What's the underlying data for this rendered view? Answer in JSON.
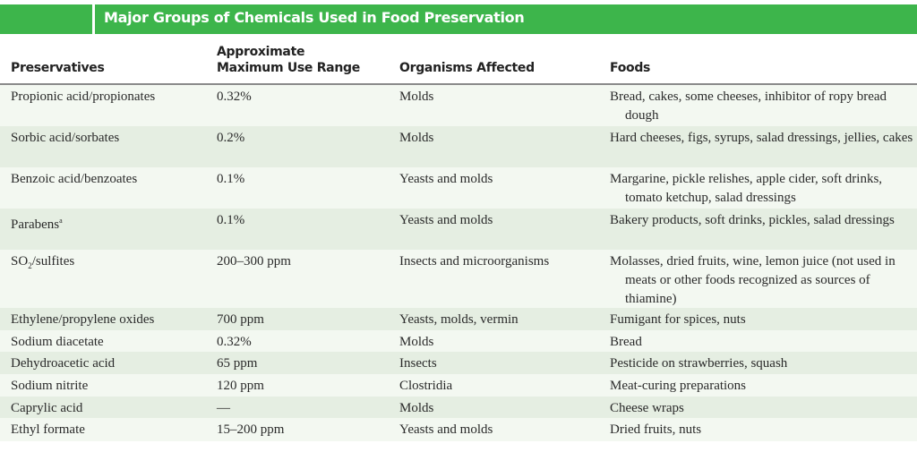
{
  "title": "Major Groups of Chemicals Used in Food Preservation",
  "columns": {
    "preservatives": "Preservatives",
    "range_line1": "Approximate",
    "range_line2": "Maximum Use Range",
    "organisms": "Organisms Affected",
    "foods": "Foods"
  },
  "colors": {
    "title_bar": "#3db54b",
    "row_light": "#f3f8f1",
    "row_shaded": "#e5eee2"
  },
  "rows": [
    {
      "preservative": "Propionic acid/propionates",
      "range": "0.32%",
      "organisms": "Molds",
      "foods": "Bread, cakes, some cheeses, inhibitor of ropy bread dough"
    },
    {
      "preservative": "Sorbic acid/sorbates",
      "range": "0.2%",
      "organisms": "Molds",
      "foods": "Hard cheeses, figs, syrups, salad dressings, jellies, cakes"
    },
    {
      "preservative": "Benzoic acid/benzoates",
      "range": "0.1%",
      "organisms": "Yeasts and molds",
      "foods": "Margarine, pickle relishes, apple cider, soft drinks, tomato ketchup, salad dressings"
    },
    {
      "preservative": "Parabens",
      "sup": "a",
      "range": "0.1%",
      "organisms": "Yeasts and molds",
      "foods": "Bakery products, soft drinks, pickles, salad dressings"
    },
    {
      "preservative_pre": "SO",
      "sub": "2",
      "preservative_post": "/sulfites",
      "range": "200–300 ppm",
      "organisms": "Insects and microorganisms",
      "foods": "Molasses, dried fruits, wine, lemon juice (not used in meats or other foods recognized as sources of thiamine)"
    },
    {
      "preservative": "Ethylene/propylene oxides",
      "range": "700 ppm",
      "organisms": "Yeasts, molds, vermin",
      "foods": "Fumigant for spices, nuts"
    },
    {
      "preservative": "Sodium diacetate",
      "range": "0.32%",
      "organisms": "Molds",
      "foods": "Bread"
    },
    {
      "preservative": "Dehydroacetic acid",
      "range": "65 ppm",
      "organisms": "Insects",
      "foods": "Pesticide on strawberries, squash"
    },
    {
      "preservative": "Sodium nitrite",
      "range": "120 ppm",
      "organisms": "Clostridia",
      "foods": "Meat-curing preparations"
    },
    {
      "preservative": "Caprylic acid",
      "range": "—",
      "organisms": "Molds",
      "foods": "Cheese wraps"
    },
    {
      "preservative": "Ethyl formate",
      "range": "15–200 ppm",
      "organisms": "Yeasts and molds",
      "foods": "Dried fruits, nuts"
    }
  ]
}
